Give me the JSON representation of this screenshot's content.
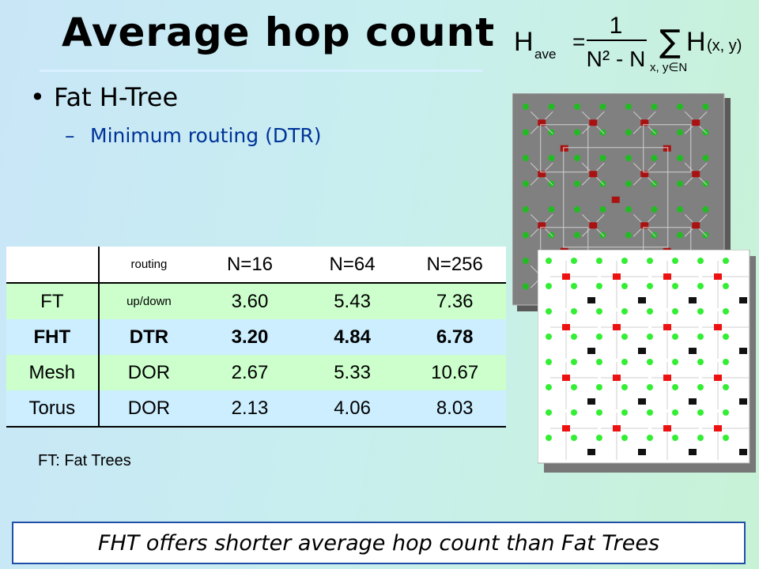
{
  "slide": {
    "title": "Average hop count",
    "formula": {
      "lhs": "H",
      "lhs_sub": "ave",
      "equals": "=",
      "numerator": "1",
      "denominator": "N² - N",
      "sum_symbol": "∑",
      "sum_index": "x, y∈N",
      "term": "H",
      "term_args": "(x, y)"
    },
    "bullet": "Fat H-Tree",
    "sub_bullet": "Minimum routing (DTR)",
    "table": {
      "header": [
        "",
        "routing",
        "N=16",
        "N=64",
        "N=256"
      ],
      "rows": [
        {
          "name": "FT",
          "routing": "up/down",
          "values": [
            "3.60",
            "5.43",
            "7.36"
          ]
        },
        {
          "name": "FHT",
          "routing": "DTR",
          "values": [
            "3.20",
            "4.84",
            "6.78"
          ]
        },
        {
          "name": "Mesh",
          "routing": "DOR",
          "values": [
            "2.67",
            "5.33",
            "10.67"
          ]
        },
        {
          "name": "Torus",
          "routing": "DOR",
          "values": [
            "2.13",
            "4.06",
            "8.03"
          ]
        }
      ]
    },
    "note": "FT: Fat Trees",
    "conclusion": "FHT offers shorter average hop count than Fat Trees",
    "colors": {
      "title_text": "#000000",
      "sub_bullet": "#003399",
      "row_green": "#ccffcc",
      "row_blue": "#cceeff",
      "node_green": "#22bb22",
      "node_bright_green": "#33ee33",
      "switch_dark_red": "#aa1111",
      "switch_red": "#ee1111",
      "switch_black": "#111111",
      "diagram_gray": "#808080",
      "conclusion_border": "#1f4fa6"
    }
  }
}
